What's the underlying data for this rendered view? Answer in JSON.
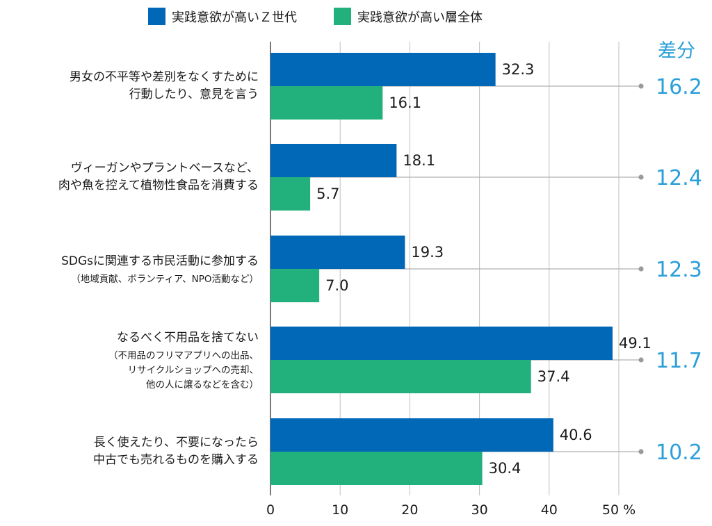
{
  "chart_data": {
    "type": "bar",
    "orientation": "horizontal",
    "categories": [
      {
        "label_lines": [
          "男女の不平等や差別をなくすために",
          "行動したり、意見を言う"
        ],
        "sub_lines": []
      },
      {
        "label_lines": [
          "ヴィーガンやプラントベースなど、",
          "肉や魚を控えて植物性食品を消費する"
        ],
        "sub_lines": []
      },
      {
        "label_lines": [
          "SDGsに関連する市民活動に参加する"
        ],
        "sub_lines": [
          "（地域貢献、ボランティア、NPO活動など）"
        ]
      },
      {
        "label_lines": [
          "なるべく不用品を捨てない"
        ],
        "sub_lines": [
          "（不用品のフリマアプリへの出品、",
          "リサイクルショップへの売却、",
          "他の人に譲るなどを含む）"
        ]
      },
      {
        "label_lines": [
          "長く使えたり、不要になったら",
          "中古でも売れるものを購入する"
        ],
        "sub_lines": []
      }
    ],
    "series": [
      {
        "name": "実践意欲が高いＺ世代",
        "color": "#0068b7",
        "values": [
          32.3,
          18.1,
          19.3,
          49.1,
          40.6
        ]
      },
      {
        "name": "実践意欲が高い層全体",
        "color": "#22b07d",
        "values": [
          16.1,
          5.7,
          7.0,
          37.4,
          30.4
        ]
      }
    ],
    "value_labels": [
      [
        "32.3",
        "18.1",
        "19.3",
        "49.1",
        "40.6"
      ],
      [
        "16.1",
        "5.7",
        "7.0",
        "37.4",
        "30.4"
      ]
    ],
    "difference": {
      "title": "差分",
      "values": [
        "16.2",
        "12.4",
        "12.3",
        "11.7",
        "10.2"
      ],
      "color": "#2b9fd9"
    },
    "x_ticks": [
      "0",
      "10",
      "20",
      "30",
      "40",
      "50"
    ],
    "x_unit": "%",
    "xlim": [
      0,
      50
    ],
    "grid": true,
    "legend_position": "top"
  }
}
